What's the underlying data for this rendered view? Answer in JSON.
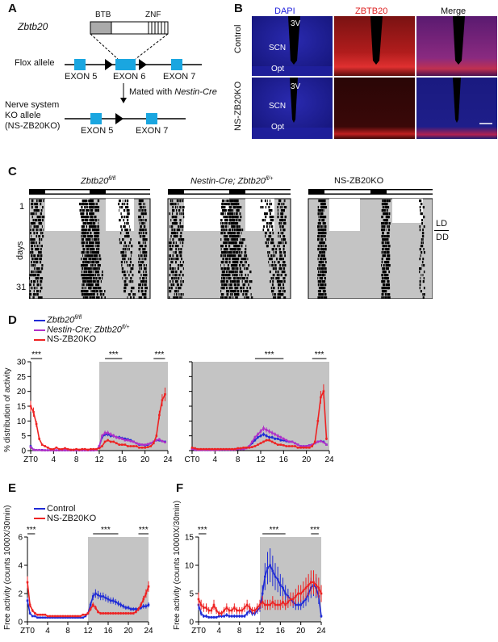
{
  "panels": {
    "A": {
      "label": "A",
      "gene": "Zbtb20",
      "domain_btb": "BTB",
      "domain_znf": "ZNF",
      "flox_label": "Flox allele",
      "exon5": "EXON 5",
      "exon6": "EXON 6",
      "exon7": "EXON 7",
      "mated_prefix": "Mated with ",
      "mated_cre": "Nestin-Cre",
      "ko_line1": "Nerve system",
      "ko_line2": "KO allele",
      "ko_line3": "(NS-ZB20KO)",
      "ko_exon5": "EXON 5",
      "ko_exon7": "EXON 7"
    },
    "B": {
      "label": "B",
      "col_dapi": "DAPI",
      "col_zbtb20": "ZBTB20",
      "col_merge": "Merge",
      "row_control": "Control",
      "row_ko": "NS-ZB20KO",
      "lbl_3v": "3V",
      "lbl_scn": "SCN",
      "lbl_opt": "Opt",
      "colors": {
        "dapi": "#2222dd",
        "zbtb20": "#dd2222"
      }
    },
    "C": {
      "label": "C",
      "t1_gene": "Zbtb20",
      "t1_sup": "fl/fl",
      "t2_gene": "Nestin-Cre; Zbtb20",
      "t2_sup": "fl/+",
      "t3": "NS-ZB20KO",
      "y_tick_1": "1",
      "y_tick_31": "31",
      "y_label": "days",
      "ld": "LD",
      "dd": "DD"
    },
    "D": {
      "label": "D",
      "legend_1": "Zbtb20",
      "legend_1_sup": "fl/fl",
      "legend_2": "Nestin-Cre; Zbtb20",
      "legend_2_sup": "fl/+",
      "legend_3": "NS-ZB20KO",
      "y_label": "% distribution of activity",
      "sig": "***"
    },
    "E": {
      "label": "E",
      "legend_1": "Control",
      "legend_2": "NS-ZB20KO",
      "y_label": "Free activity (counts 1000X/30min)",
      "sig": "***"
    },
    "F": {
      "label": "F",
      "y_label": "Free activity (counts 10000X/30min)",
      "sig": "***"
    }
  },
  "colors": {
    "blue": "#1f2bd6",
    "purple": "#b030c8",
    "red": "#ee2222",
    "exon": "#1aa6e0",
    "shade": "#c4c4c4"
  },
  "chart_data": [
    {
      "id": "D-left",
      "type": "line",
      "x_ticks": [
        "ZT0",
        "4",
        "8",
        "12",
        "16",
        "20",
        "24"
      ],
      "y_ticks": [
        "0",
        "5",
        "10",
        "15",
        "20",
        "25",
        "30"
      ],
      "xlim": [
        0,
        24
      ],
      "ylim": [
        0,
        30
      ],
      "dark_period": [
        12,
        24
      ],
      "significance": [
        [
          0,
          2,
          "***"
        ],
        [
          13,
          16,
          "***"
        ],
        [
          21.5,
          23.5,
          "***"
        ]
      ],
      "x": [
        0,
        0.5,
        1,
        1.5,
        2,
        2.5,
        3,
        3.5,
        4,
        4.5,
        5,
        5.5,
        6,
        6.5,
        7,
        7.5,
        8,
        8.5,
        9,
        9.5,
        10,
        10.5,
        11,
        11.5,
        12,
        12.5,
        13,
        13.5,
        14,
        14.5,
        15,
        15.5,
        16,
        16.5,
        17,
        17.5,
        18,
        18.5,
        19,
        19.5,
        20,
        20.5,
        21,
        21.5,
        22,
        22.5,
        23,
        23.5
      ],
      "series": [
        {
          "name": "Zbtb20 fl/fl",
          "color": "#1f2bd6",
          "values": [
            1.5,
            0.3,
            0.2,
            0.2,
            0.2,
            0.1,
            0.1,
            0.2,
            0.1,
            0.1,
            0.1,
            0.1,
            0.1,
            0.1,
            0.1,
            0.1,
            0.1,
            0.1,
            0.1,
            0.1,
            0.1,
            0.1,
            0.1,
            0.2,
            1.5,
            4.5,
            5.5,
            5.5,
            5.0,
            5.0,
            4.5,
            4.5,
            4.2,
            4.0,
            3.8,
            3.5,
            3.0,
            2.5,
            2.0,
            2.0,
            1.8,
            2.0,
            2.5,
            3.0,
            3.5,
            3.5,
            3.2,
            3.0
          ]
        },
        {
          "name": "Nestin-Cre; Zbtb20 fl/+",
          "color": "#b030c8",
          "values": [
            1.2,
            0.3,
            0.2,
            0.2,
            0.1,
            0.1,
            0.1,
            0.1,
            0.1,
            0.1,
            0.1,
            0.1,
            0.1,
            0.1,
            0.1,
            0.1,
            0.1,
            0.1,
            0.1,
            0.1,
            0.1,
            0.1,
            0.1,
            0.2,
            1.5,
            5.0,
            6.0,
            6.0,
            5.5,
            5.0,
            4.5,
            4.2,
            4.0,
            3.5,
            3.5,
            3.2,
            3.0,
            2.5,
            2.2,
            2.0,
            2.0,
            2.2,
            2.5,
            3.0,
            3.5,
            3.8,
            3.2,
            2.8
          ]
        },
        {
          "name": "NS-ZB20KO",
          "color": "#ee2222",
          "values": [
            15.0,
            13.0,
            9.0,
            4.0,
            2.0,
            1.5,
            1.0,
            0.5,
            0.5,
            1.0,
            0.5,
            0.5,
            0.8,
            0.5,
            0.3,
            0.3,
            0.5,
            0.3,
            0.5,
            0.5,
            0.3,
            0.5,
            0.5,
            0.5,
            0.8,
            1.5,
            3.0,
            3.5,
            3.0,
            3.0,
            2.5,
            2.0,
            2.0,
            2.0,
            1.5,
            1.5,
            1.5,
            1.5,
            1.0,
            1.0,
            1.0,
            1.2,
            1.5,
            2.5,
            5.0,
            12.0,
            17.0,
            19.0
          ]
        }
      ]
    },
    {
      "id": "D-right",
      "type": "line",
      "x_ticks": [
        "CT0",
        "4",
        "8",
        "12",
        "16",
        "20",
        "24"
      ],
      "xlim": [
        0,
        24
      ],
      "ylim": [
        0,
        30
      ],
      "dark_period": [
        0,
        24
      ],
      "significance": [
        [
          11,
          16,
          "***"
        ],
        [
          21,
          23.5,
          "***"
        ]
      ],
      "x": [
        0,
        0.5,
        1,
        1.5,
        2,
        2.5,
        3,
        3.5,
        4,
        4.5,
        5,
        5.5,
        6,
        6.5,
        7,
        7.5,
        8,
        8.5,
        9,
        9.5,
        10,
        10.5,
        11,
        11.5,
        12,
        12.5,
        13,
        13.5,
        14,
        14.5,
        15,
        15.5,
        16,
        16.5,
        17,
        17.5,
        18,
        18.5,
        19,
        19.5,
        20,
        20.5,
        21,
        21.5,
        22,
        22.5,
        23,
        23.5
      ],
      "series": [
        {
          "name": "Zbtb20 fl/fl",
          "color": "#1f2bd6",
          "values": [
            0.5,
            0.3,
            0.2,
            0.2,
            0.3,
            0.2,
            0.2,
            0.3,
            0.3,
            0.3,
            0.3,
            0.3,
            0.3,
            0.3,
            0.3,
            0.5,
            0.5,
            0.5,
            0.5,
            1.0,
            1.5,
            2.5,
            3.5,
            4.5,
            5.0,
            5.5,
            5.0,
            4.5,
            4.5,
            4.0,
            4.0,
            3.5,
            3.5,
            3.2,
            3.0,
            3.0,
            2.5,
            2.0,
            1.5,
            1.5,
            1.5,
            1.8,
            2.0,
            2.5,
            3.0,
            3.2,
            3.0,
            2.0
          ]
        },
        {
          "name": "Nestin-Cre; Zbtb20 fl/+",
          "color": "#b030c8",
          "values": [
            0.5,
            0.3,
            0.2,
            0.2,
            0.2,
            0.2,
            0.2,
            0.2,
            0.2,
            0.2,
            0.3,
            0.3,
            0.3,
            0.3,
            0.3,
            0.3,
            0.5,
            0.5,
            0.5,
            0.8,
            1.5,
            3.0,
            4.5,
            5.5,
            6.5,
            7.5,
            7.0,
            6.5,
            6.0,
            5.5,
            5.0,
            4.5,
            4.0,
            3.5,
            3.0,
            3.0,
            2.5,
            2.0,
            1.5,
            1.5,
            1.5,
            1.8,
            2.0,
            2.5,
            3.0,
            3.2,
            2.8,
            2.0
          ]
        },
        {
          "name": "NS-ZB20KO",
          "color": "#ee2222",
          "values": [
            1.0,
            0.8,
            0.5,
            0.5,
            0.5,
            0.5,
            0.5,
            0.5,
            0.5,
            0.5,
            0.5,
            0.5,
            0.5,
            0.5,
            0.5,
            0.5,
            0.8,
            0.8,
            1.0,
            1.0,
            1.0,
            1.2,
            1.5,
            2.0,
            2.5,
            3.0,
            3.5,
            3.5,
            3.0,
            2.5,
            2.0,
            2.0,
            1.8,
            1.5,
            1.5,
            1.5,
            1.5,
            1.0,
            1.0,
            1.0,
            1.0,
            1.0,
            1.5,
            3.0,
            10.0,
            18.0,
            20.0,
            4.0
          ]
        }
      ]
    },
    {
      "id": "E",
      "type": "line",
      "x_ticks": [
        "ZT0",
        "4",
        "8",
        "12",
        "16",
        "20",
        "24"
      ],
      "y_ticks": [
        "0",
        "2",
        "4",
        "6"
      ],
      "xlim": [
        0,
        24
      ],
      "ylim": [
        0,
        6
      ],
      "dark_period": [
        12,
        24
      ],
      "significance": [
        [
          0,
          1.5,
          "***"
        ],
        [
          13,
          18,
          "***"
        ],
        [
          22,
          24,
          "***"
        ]
      ],
      "x": [
        0,
        0.5,
        1,
        1.5,
        2,
        2.5,
        3,
        3.5,
        4,
        4.5,
        5,
        5.5,
        6,
        6.5,
        7,
        7.5,
        8,
        8.5,
        9,
        9.5,
        10,
        10.5,
        11,
        11.5,
        12,
        12.5,
        13,
        13.5,
        14,
        14.5,
        15,
        15.5,
        16,
        16.5,
        17,
        17.5,
        18,
        18.5,
        19,
        19.5,
        20,
        20.5,
        21,
        21.5,
        22,
        22.5,
        23,
        23.5,
        24
      ],
      "series": [
        {
          "name": "Control",
          "color": "#1f2bd6",
          "values": [
            1.5,
            0.6,
            0.4,
            0.4,
            0.3,
            0.3,
            0.3,
            0.3,
            0.3,
            0.3,
            0.3,
            0.3,
            0.3,
            0.3,
            0.3,
            0.3,
            0.3,
            0.3,
            0.3,
            0.3,
            0.3,
            0.3,
            0.3,
            0.4,
            0.6,
            1.2,
            1.8,
            2.0,
            1.9,
            1.8,
            1.8,
            1.7,
            1.6,
            1.5,
            1.5,
            1.4,
            1.3,
            1.2,
            1.1,
            1.0,
            1.0,
            0.9,
            0.9,
            0.9,
            0.9,
            1.0,
            1.1,
            1.1,
            1.2
          ]
        },
        {
          "name": "NS-ZB20KO",
          "color": "#ee2222",
          "values": [
            2.8,
            1.2,
            0.8,
            0.6,
            0.5,
            0.5,
            0.5,
            0.5,
            0.4,
            0.4,
            0.4,
            0.4,
            0.4,
            0.4,
            0.4,
            0.4,
            0.4,
            0.4,
            0.4,
            0.4,
            0.4,
            0.4,
            0.5,
            0.5,
            0.6,
            0.9,
            1.2,
            1.0,
            0.7,
            0.6,
            0.6,
            0.6,
            0.6,
            0.6,
            0.6,
            0.6,
            0.6,
            0.6,
            0.6,
            0.6,
            0.6,
            0.6,
            0.6,
            0.7,
            0.9,
            1.2,
            1.6,
            2.0,
            2.5
          ]
        }
      ]
    },
    {
      "id": "F",
      "type": "line",
      "x_ticks": [
        "ZT0",
        "4",
        "8",
        "12",
        "16",
        "20",
        "24"
      ],
      "y_ticks": [
        "0",
        "5",
        "10",
        "15"
      ],
      "xlim": [
        0,
        24
      ],
      "ylim": [
        0,
        15
      ],
      "dark_period": [
        12,
        24
      ],
      "significance": [
        [
          0,
          1.5,
          "***"
        ],
        [
          12.5,
          17,
          "***"
        ],
        [
          22,
          23.5,
          "***"
        ]
      ],
      "x": [
        0,
        0.5,
        1,
        1.5,
        2,
        2.5,
        3,
        3.5,
        4,
        4.5,
        5,
        5.5,
        6,
        6.5,
        7,
        7.5,
        8,
        8.5,
        9,
        9.5,
        10,
        10.5,
        11,
        11.5,
        12,
        12.5,
        13,
        13.5,
        14,
        14.5,
        15,
        15.5,
        16,
        16.5,
        17,
        17.5,
        18,
        18.5,
        19,
        19.5,
        20,
        20.5,
        21,
        21.5,
        22,
        22.5,
        23,
        23.5,
        24
      ],
      "series": [
        {
          "name": "Control",
          "color": "#1f2bd6",
          "values": [
            3.0,
            1.5,
            1.0,
            1.0,
            0.8,
            0.8,
            0.8,
            0.8,
            1.0,
            1.0,
            1.0,
            1.2,
            1.0,
            1.0,
            1.0,
            1.0,
            1.0,
            1.0,
            1.0,
            1.5,
            2.0,
            1.5,
            1.5,
            2.0,
            2.5,
            5.0,
            8.0,
            9.5,
            10.0,
            9.0,
            8.0,
            7.5,
            6.5,
            6.0,
            5.0,
            4.5,
            4.0,
            3.5,
            3.0,
            3.0,
            3.0,
            3.5,
            4.0,
            5.0,
            6.0,
            6.5,
            6.0,
            4.5,
            1.0
          ]
        },
        {
          "name": "NS-ZB20KO",
          "color": "#ee2222",
          "values": [
            4.0,
            3.0,
            2.5,
            2.5,
            2.0,
            2.0,
            3.0,
            2.0,
            1.5,
            1.5,
            2.0,
            2.5,
            2.0,
            2.0,
            2.5,
            2.0,
            2.0,
            2.0,
            2.5,
            3.0,
            2.5,
            2.0,
            2.0,
            2.5,
            3.0,
            3.5,
            3.0,
            3.0,
            3.0,
            3.5,
            3.0,
            3.0,
            3.0,
            3.5,
            3.0,
            3.5,
            4.0,
            4.0,
            4.5,
            5.0,
            5.0,
            5.5,
            6.0,
            6.5,
            7.0,
            7.0,
            6.5,
            6.0,
            5.0
          ]
        }
      ]
    }
  ]
}
